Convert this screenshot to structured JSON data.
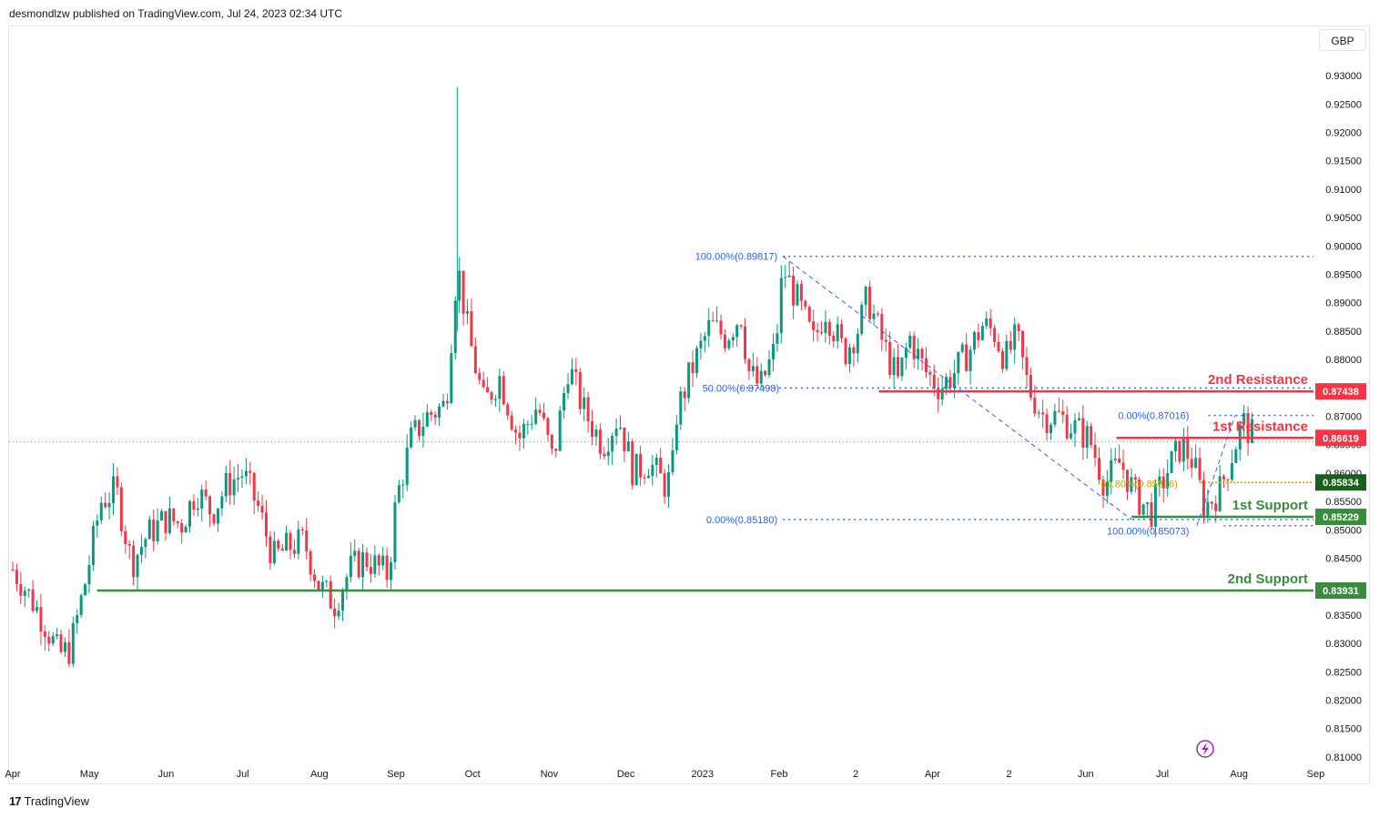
{
  "header": {
    "published": "desmondlzw published on TradingView.com, Jul 24, 2023 02:34 UTC"
  },
  "currency": "GBP",
  "footer": {
    "logo_text": "TradingView"
  },
  "chart_data": {
    "type": "candlestick",
    "x_labels": [
      "Apr",
      "May",
      "Jun",
      "Jul",
      "Aug",
      "Sep",
      "Oct",
      "Nov",
      "Dec",
      "2023",
      "Feb",
      "2",
      "Apr",
      "2",
      "Jun",
      "Jul",
      "Aug",
      "Sep"
    ],
    "y_ticks": [
      0.81,
      0.815,
      0.82,
      0.825,
      0.83,
      0.835,
      0.84,
      0.845,
      0.85,
      0.855,
      0.86,
      0.865,
      0.87,
      0.875,
      0.88,
      0.885,
      0.89,
      0.895,
      0.9,
      0.905,
      0.91,
      0.915,
      0.92,
      0.925,
      0.93
    ],
    "y_tick_labels": [
      "0.81000",
      "0.81500",
      "0.82000",
      "0.82500",
      "0.83000",
      "0.83500",
      "0.84000",
      "0.84500",
      "0.85000",
      "0.85500",
      "0.86000",
      "0.86500",
      "0.87000",
      "0.87500",
      "0.88000",
      "0.88500",
      "0.89000",
      "0.89500",
      "0.90000",
      "0.90500",
      "0.91000",
      "0.91500",
      "0.92000",
      "0.92500",
      "0.93000"
    ],
    "ylim": [
      0.8095,
      0.9345
    ],
    "current_price": 0.8655,
    "levels": [
      {
        "name": "2nd Resistance",
        "value": 0.87438,
        "label": "0.87438",
        "color": "#f23645",
        "start_x_index": 11.3
      },
      {
        "name": "1st Resistance",
        "value": 0.86619,
        "label": "0.86619",
        "color": "#f23645",
        "start_x_index": 14.4
      },
      {
        "name": "",
        "value": 0.85834,
        "label": "0.85834",
        "color": "#1b5e20",
        "start_x_index": 15.5,
        "dotted": true
      },
      {
        "name": "1st Support",
        "value": 0.85229,
        "label": "0.85229",
        "color": "#388e3c",
        "start_x_index": 14.6
      },
      {
        "name": "2nd Support",
        "value": 0.83931,
        "label": "0.83931",
        "color": "#388e3c",
        "start_x_index": 1.1
      }
    ],
    "fib_labels": [
      {
        "text": "100.00%(0.89817)",
        "value": 0.89817
      },
      {
        "text": "50.00%(0.87498)",
        "value": 0.87498
      },
      {
        "text": "0.00%(0.85180)",
        "value": 0.8518
      },
      {
        "text": "0.00%(0.87016)",
        "value": 0.87016
      },
      {
        "text": "61.80%(0.85816)",
        "value": 0.85816
      },
      {
        "text": "100.00%(0.85073)",
        "value": 0.85073
      }
    ],
    "price_path": [
      [
        0.0,
        0.843
      ],
      [
        0.15,
        0.84
      ],
      [
        0.4,
        0.834
      ],
      [
        0.6,
        0.828
      ],
      [
        0.75,
        0.829
      ],
      [
        0.95,
        0.841
      ],
      [
        1.15,
        0.855
      ],
      [
        1.35,
        0.857
      ],
      [
        1.55,
        0.844
      ],
      [
        1.75,
        0.849
      ],
      [
        2.0,
        0.852
      ],
      [
        2.2,
        0.851
      ],
      [
        2.4,
        0.857
      ],
      [
        2.6,
        0.853
      ],
      [
        2.8,
        0.858
      ],
      [
        3.0,
        0.86
      ],
      [
        3.2,
        0.854
      ],
      [
        3.4,
        0.845
      ],
      [
        3.6,
        0.847
      ],
      [
        3.8,
        0.848
      ],
      [
        4.0,
        0.84
      ],
      [
        4.2,
        0.837
      ],
      [
        4.4,
        0.843
      ],
      [
        4.6,
        0.845
      ],
      [
        4.9,
        0.842
      ],
      [
        5.0,
        0.855
      ],
      [
        5.2,
        0.866
      ],
      [
        5.4,
        0.87
      ],
      [
        5.65,
        0.872
      ],
      [
        5.8,
        0.897
      ],
      [
        5.95,
        0.884
      ],
      [
        6.15,
        0.872
      ],
      [
        6.35,
        0.877
      ],
      [
        6.6,
        0.866
      ],
      [
        6.85,
        0.872
      ],
      [
        7.05,
        0.862
      ],
      [
        7.25,
        0.879
      ],
      [
        7.45,
        0.871
      ],
      [
        7.7,
        0.865
      ],
      [
        7.9,
        0.87
      ],
      [
        8.1,
        0.86
      ],
      [
        8.3,
        0.862
      ],
      [
        8.5,
        0.858
      ],
      [
        8.6,
        0.859
      ],
      [
        8.65,
        0.87
      ],
      [
        8.85,
        0.878
      ],
      [
        9.1,
        0.886
      ],
      [
        9.3,
        0.884
      ],
      [
        9.5,
        0.888
      ],
      [
        9.6,
        0.878
      ],
      [
        9.75,
        0.875
      ],
      [
        9.95,
        0.882
      ],
      [
        10.05,
        0.896
      ],
      [
        10.25,
        0.89
      ],
      [
        10.45,
        0.883
      ],
      [
        10.6,
        0.889
      ],
      [
        10.85,
        0.881
      ],
      [
        11.05,
        0.886
      ],
      [
        11.15,
        0.891
      ],
      [
        11.35,
        0.883
      ],
      [
        11.55,
        0.876
      ],
      [
        11.7,
        0.884
      ],
      [
        11.9,
        0.878
      ],
      [
        12.1,
        0.875
      ],
      [
        12.3,
        0.878
      ],
      [
        12.5,
        0.882
      ],
      [
        12.65,
        0.886
      ],
      [
        12.8,
        0.885
      ],
      [
        12.95,
        0.88
      ],
      [
        13.1,
        0.884
      ],
      [
        13.25,
        0.875
      ],
      [
        13.45,
        0.87
      ],
      [
        13.65,
        0.87
      ],
      [
        13.85,
        0.868
      ],
      [
        14.05,
        0.866
      ],
      [
        14.25,
        0.858
      ],
      [
        14.45,
        0.862
      ],
      [
        14.65,
        0.856
      ],
      [
        14.85,
        0.853
      ],
      [
        15.05,
        0.86
      ],
      [
        15.25,
        0.865
      ],
      [
        15.4,
        0.862
      ],
      [
        15.55,
        0.854
      ],
      [
        15.75,
        0.857
      ],
      [
        15.95,
        0.865
      ],
      [
        16.05,
        0.869
      ],
      [
        16.2,
        0.866
      ]
    ]
  }
}
